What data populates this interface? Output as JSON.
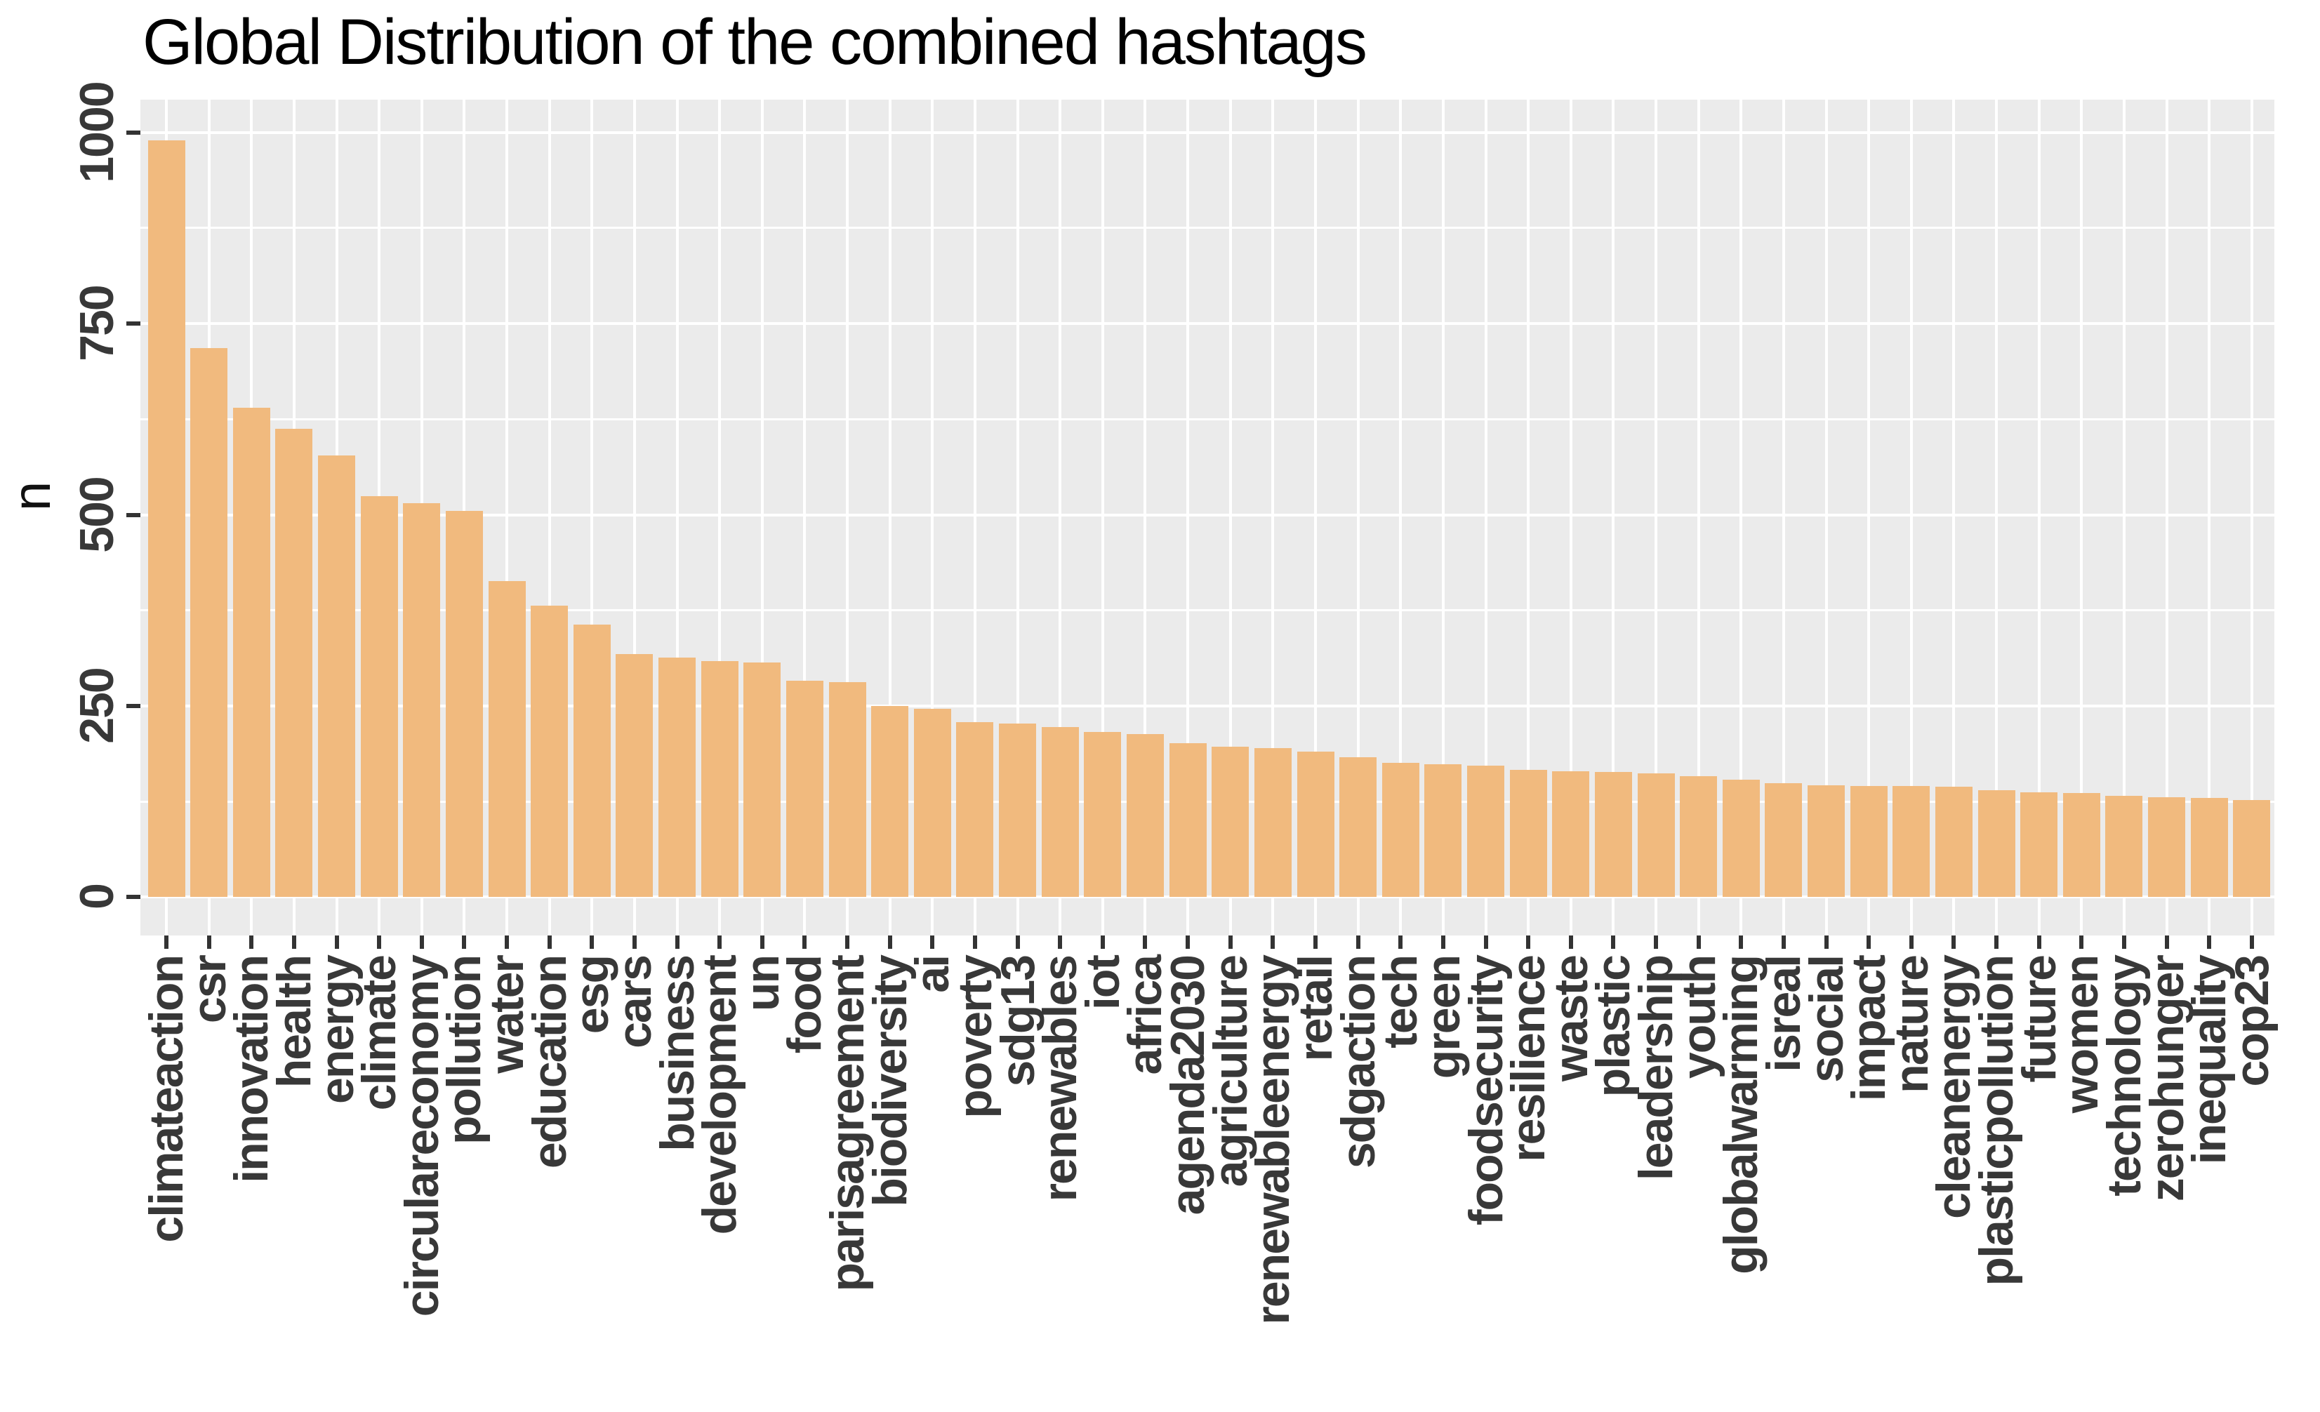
{
  "title": "Global Distribution of the combined hashtags",
  "chart_data": {
    "type": "bar",
    "title": "Global Distribution of the combined hashtags",
    "xlabel": "",
    "ylabel": "n",
    "legend_position": "none",
    "grid": "white major and minor horizontal gridlines, white vertical gridlines at bar centers, on light gray panel",
    "ylim": [
      -52,
      1043
    ],
    "yticks": [
      0,
      250,
      500,
      750,
      1000
    ],
    "ytick_labels": [
      "0",
      "250",
      "500",
      "750",
      "1000"
    ],
    "categories": [
      "climateaction",
      "csr",
      "innovation",
      "health",
      "energy",
      "climate",
      "circulareconomy",
      "pollution",
      "water",
      "education",
      "esg",
      "cars",
      "business",
      "development",
      "un",
      "food",
      "parisagreement",
      "biodiversity",
      "ai",
      "poverty",
      "sdg13",
      "renewables",
      "iot",
      "africa",
      "agenda2030",
      "agriculture",
      "renewableenergy",
      "retail",
      "sdgaction",
      "tech",
      "green",
      "foodsecurity",
      "resilience",
      "waste",
      "plastic",
      "leadership",
      "youth",
      "globalwarming",
      "isreal",
      "social",
      "impact",
      "nature",
      "cleanenergy",
      "plasticpollution",
      "future",
      "women",
      "technology",
      "zerohunger",
      "inequality",
      "cop23"
    ],
    "values": [
      990,
      718,
      640,
      612,
      578,
      524,
      515,
      505,
      413,
      381,
      356,
      318,
      313,
      309,
      307,
      283,
      281,
      250,
      246,
      229,
      227,
      222,
      216,
      213,
      201,
      197,
      195,
      190,
      183,
      176,
      174,
      172,
      166,
      165,
      164,
      162,
      158,
      154,
      149,
      146,
      145,
      145,
      144,
      140,
      137,
      136,
      132,
      131,
      130,
      127
    ]
  },
  "style": {
    "bar_color": "#F1BA7E",
    "panel_bg": "#EBEBEB",
    "grid_color": "#FFFFFF",
    "tick_color": "#333333",
    "axis_text_color": "#383838",
    "title_color": "#000000"
  }
}
